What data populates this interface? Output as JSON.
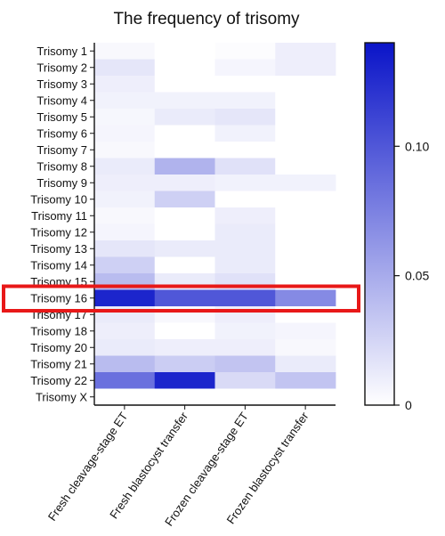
{
  "chart_data": {
    "type": "heatmap",
    "title": "The frequency of trisomy",
    "rows": [
      "Trisomy 1",
      "Trisomy 2",
      "Trisomy 3",
      "Trisomy 4",
      "Trisomy 5",
      "Trisomy 6",
      "Trisomy 7",
      "Trisomy 8",
      "Trisomy 9",
      "Trisomy 10",
      "Trisomy 11",
      "Trisomy 12",
      "Trisomy 13",
      "Trisomy 14",
      "Trisomy 15",
      "Trisomy 16",
      "Trisomy 17",
      "Trisomy 18",
      "Trisomy 20",
      "Trisomy 21",
      "Trisomy 22",
      "Trisomy X"
    ],
    "columns": [
      "Fresh cleavage-stage ET",
      "Fresh blastocyst transfer",
      "Frozen cleavage-stage ET",
      "Frozen blastocyst transfer"
    ],
    "values": [
      [
        0.004,
        0.0,
        0.002,
        0.01
      ],
      [
        0.015,
        0.0,
        0.006,
        0.01
      ],
      [
        0.01,
        0.0,
        0.0,
        0.0
      ],
      [
        0.008,
        0.008,
        0.008,
        0.0
      ],
      [
        0.005,
        0.012,
        0.015,
        0.0
      ],
      [
        0.006,
        0.0,
        0.008,
        0.0
      ],
      [
        0.004,
        0.0,
        0.0,
        0.0
      ],
      [
        0.012,
        0.045,
        0.018,
        0.0
      ],
      [
        0.01,
        0.01,
        0.008,
        0.008
      ],
      [
        0.008,
        0.028,
        0.0,
        0.0
      ],
      [
        0.004,
        0.0,
        0.01,
        0.0
      ],
      [
        0.006,
        0.0,
        0.012,
        0.0
      ],
      [
        0.015,
        0.012,
        0.012,
        0.0
      ],
      [
        0.028,
        0.0,
        0.012,
        0.0
      ],
      [
        0.04,
        0.012,
        0.018,
        0.0
      ],
      [
        0.13,
        0.1,
        0.1,
        0.07
      ],
      [
        0.012,
        0.004,
        0.01,
        0.0
      ],
      [
        0.01,
        0.0,
        0.008,
        0.006
      ],
      [
        0.012,
        0.01,
        0.01,
        0.004
      ],
      [
        0.04,
        0.03,
        0.035,
        0.012
      ],
      [
        0.085,
        0.13,
        0.022,
        0.035
      ],
      [
        0.0,
        0.0,
        0.0,
        0.0
      ]
    ],
    "color_min": "#ffffff",
    "color_max": "#0a14c8",
    "value_range": [
      0,
      0.14
    ],
    "colorbar_ticks": [
      0,
      0.05,
      0.1
    ],
    "colorbar_tick_labels": [
      "0",
      "0.05",
      "0.10"
    ],
    "highlight_row": "Trisomy 16",
    "highlight_color": "#e81818"
  }
}
